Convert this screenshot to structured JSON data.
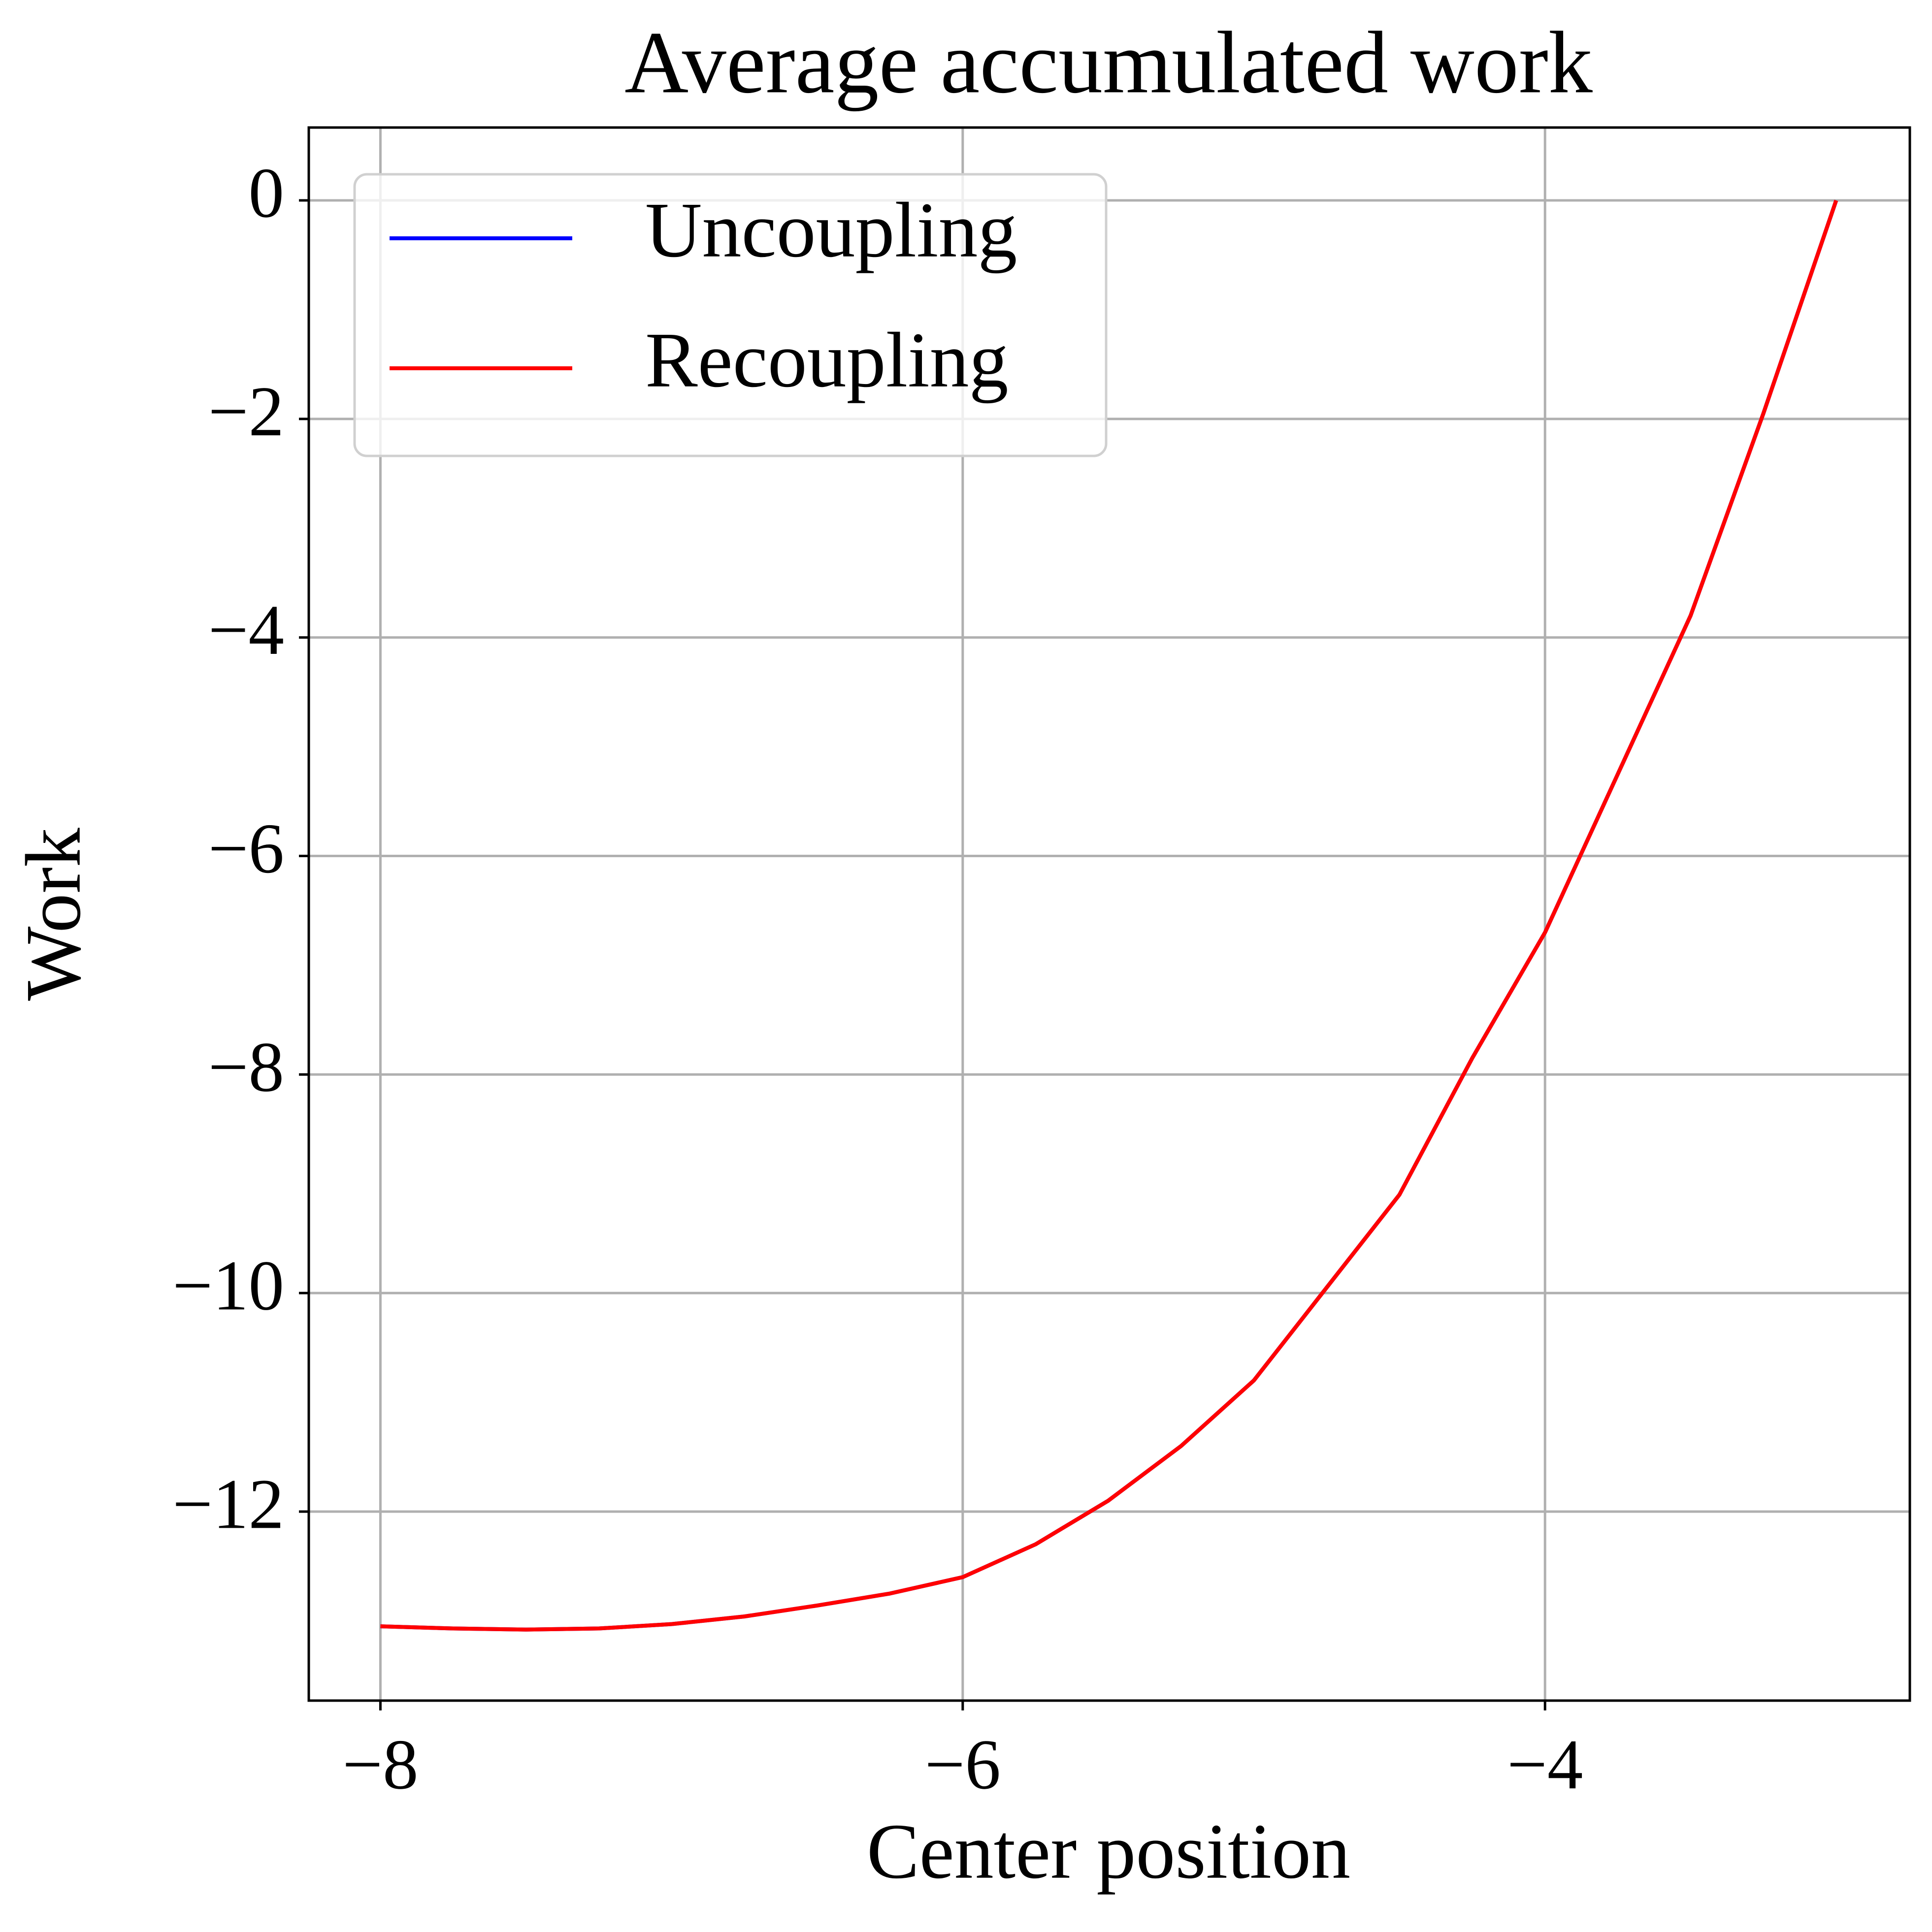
{
  "chart_data": {
    "type": "line",
    "title": "Average accumulated work",
    "x_label": "Center position",
    "y_label": "Work",
    "x": [
      -8,
      -7.75,
      -7.5,
      -7.25,
      -7,
      -6.75,
      -6.5,
      -6.25,
      -6,
      -5.75,
      -5.5,
      -5.25,
      -5,
      -4.75,
      -4.5,
      -4.25,
      -4,
      -3.75,
      -3.5,
      -3.25,
      -3
    ],
    "series": [
      {
        "name": "Uncoupling",
        "color": "#0000ff",
        "values": [
          -13.05,
          -13.07,
          -13.08,
          -13.07,
          -13.03,
          -12.96,
          -12.86,
          -12.75,
          -12.6,
          -12.3,
          -11.9,
          -11.4,
          -10.8,
          -9.95,
          -9.1,
          -7.85,
          -6.7,
          -5.25,
          -3.8,
          -1.95,
          0
        ]
      },
      {
        "name": "Recoupling",
        "color": "#ff0000",
        "values": [
          -13.05,
          -13.07,
          -13.08,
          -13.07,
          -13.03,
          -12.96,
          -12.86,
          -12.75,
          -12.6,
          -12.3,
          -11.9,
          -11.4,
          -10.8,
          -9.95,
          -9.1,
          -7.85,
          -6.7,
          -5.25,
          -3.8,
          -1.95,
          0
        ]
      }
    ],
    "xlim": [
      -8.246,
      -2.747
    ],
    "xticks": [
      {
        "value": -8,
        "label": "−8"
      },
      {
        "value": -6,
        "label": "−6"
      },
      {
        "value": -4,
        "label": "−4"
      }
    ],
    "ylim": [
      -13.73,
      0.667
    ],
    "yticks": [
      {
        "value": -12,
        "label": "−12"
      },
      {
        "value": -10,
        "label": "−10"
      },
      {
        "value": -8,
        "label": "−8"
      },
      {
        "value": -6,
        "label": "−6"
      },
      {
        "value": -4,
        "label": "−4"
      },
      {
        "value": -2,
        "label": "−2"
      },
      0
    ],
    "grid": true,
    "legend": "upper left"
  }
}
